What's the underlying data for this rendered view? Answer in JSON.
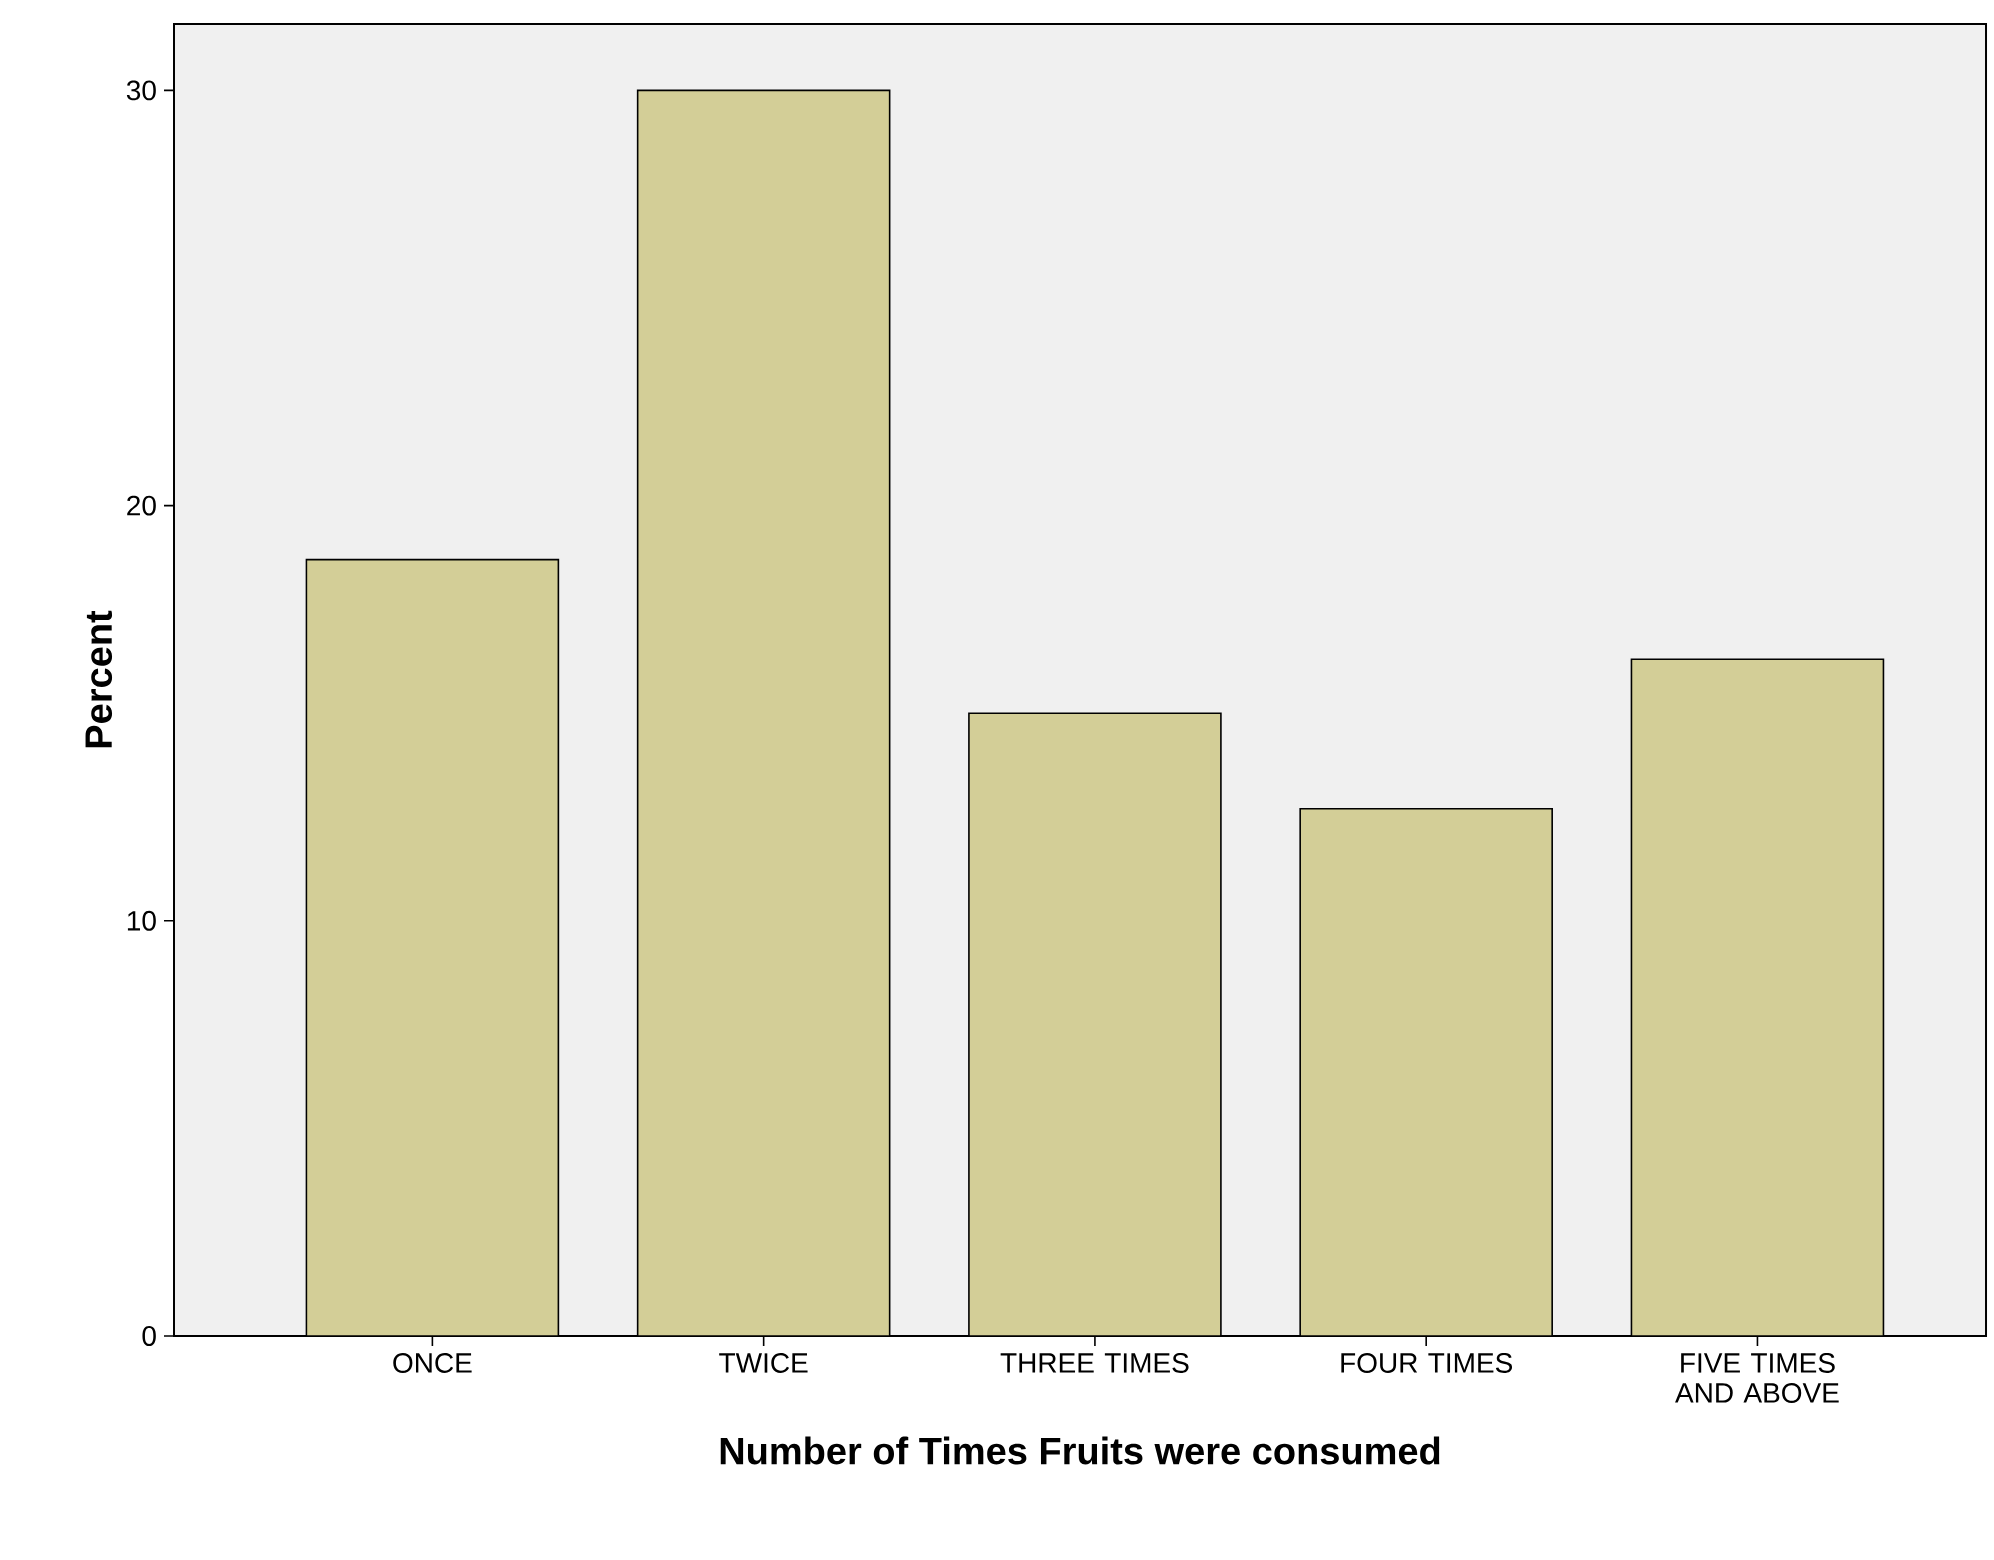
{
  "chart_data": {
    "type": "bar",
    "xlabel": "Number of Times Fruits were consumed",
    "ylabel": "Percent",
    "categories": [
      "ONCE",
      "TWICE",
      "THREE TIMES",
      "FOUR TIMES",
      "FIVE TIMES AND ABOVE"
    ],
    "values": [
      18.7,
      30.0,
      15.0,
      12.7,
      16.3
    ],
    "color": "#d3ce97",
    "ylim": [
      0,
      31.6
    ],
    "yticks": [
      0,
      10,
      20,
      30
    ]
  }
}
